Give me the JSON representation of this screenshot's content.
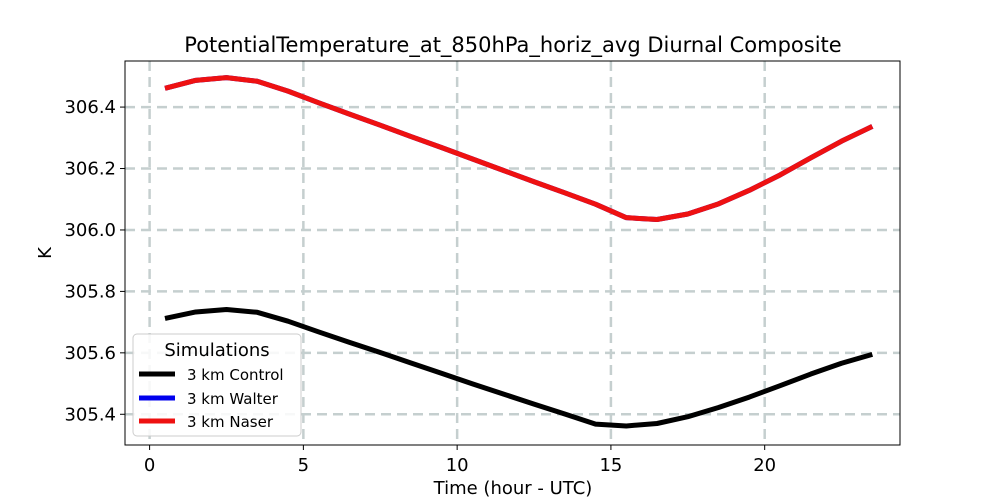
{
  "chart_data": {
    "type": "line",
    "title": "PotentialTemperature_at_850hPa_horiz_avg Diurnal Composite",
    "xlabel": "Time (hour - UTC)",
    "ylabel": "K",
    "xlim": [
      -0.8,
      24.4
    ],
    "ylim": [
      305.3,
      306.55
    ],
    "xticks": [
      0,
      5,
      10,
      15,
      20
    ],
    "yticks": [
      305.4,
      305.6,
      305.8,
      306.0,
      306.2,
      306.4
    ],
    "grid": true,
    "legend": {
      "title": "Simulations",
      "location": "lower-left"
    },
    "x": [
      0.5,
      1.5,
      2.5,
      3.5,
      4.5,
      5.5,
      6.5,
      7.5,
      8.5,
      9.5,
      10.5,
      11.5,
      12.5,
      13.5,
      14.5,
      15.5,
      16.5,
      17.5,
      18.5,
      19.5,
      20.5,
      21.5,
      22.5,
      23.5
    ],
    "series": [
      {
        "name": "3 km Control",
        "color": "#000000",
        "values": [
          305.712,
          305.733,
          305.741,
          305.732,
          305.703,
          305.668,
          305.634,
          305.601,
          305.567,
          305.533,
          305.499,
          305.466,
          305.433,
          305.401,
          305.368,
          305.362,
          305.37,
          305.392,
          305.422,
          305.456,
          305.493,
          305.531,
          305.566,
          305.595
        ]
      },
      {
        "name": "3 km Walter",
        "color": "#0000ee",
        "values": [
          306.461,
          306.487,
          306.496,
          306.484,
          306.452,
          306.414,
          306.377,
          306.341,
          306.304,
          306.268,
          306.231,
          306.194,
          306.157,
          306.121,
          306.084,
          306.04,
          306.034,
          306.052,
          306.085,
          306.129,
          306.179,
          306.235,
          306.289,
          306.337
        ]
      },
      {
        "name": "3 km Naser",
        "color": "#ee1111",
        "values": [
          306.461,
          306.487,
          306.496,
          306.484,
          306.452,
          306.414,
          306.377,
          306.341,
          306.304,
          306.268,
          306.231,
          306.194,
          306.157,
          306.121,
          306.084,
          306.04,
          306.034,
          306.052,
          306.085,
          306.129,
          306.179,
          306.235,
          306.289,
          306.337
        ]
      }
    ]
  }
}
